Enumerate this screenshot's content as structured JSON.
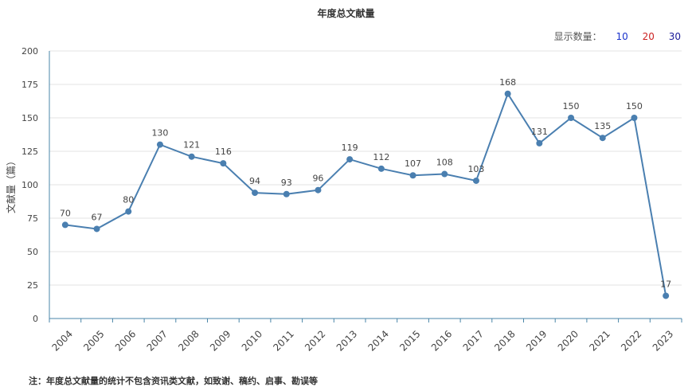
{
  "title": "年度总文献量",
  "count_selector": {
    "label": "显示数量：",
    "options": [
      "10",
      "20",
      "30"
    ]
  },
  "note": "注：年度总文献量的统计不包含资讯类文献，如致谢、稿约、启事、勘误等",
  "chart_data": {
    "type": "line",
    "title": "年度总文献量",
    "xlabel": "",
    "ylabel": "文献量（篇）",
    "ylim": [
      0,
      200
    ],
    "yticks": [
      0,
      25,
      50,
      75,
      100,
      125,
      150,
      175,
      200
    ],
    "grid": true,
    "categories": [
      "2004",
      "2005",
      "2006",
      "2007",
      "2008",
      "2009",
      "2010",
      "2011",
      "2012",
      "2013",
      "2014",
      "2015",
      "2016",
      "2017",
      "2018",
      "2019",
      "2020",
      "2021",
      "2022",
      "2023"
    ],
    "values": [
      70,
      67,
      80,
      130,
      121,
      116,
      94,
      93,
      96,
      119,
      112,
      107,
      108,
      103,
      168,
      131,
      150,
      135,
      150,
      17
    ],
    "color": "#4a7fb0"
  }
}
